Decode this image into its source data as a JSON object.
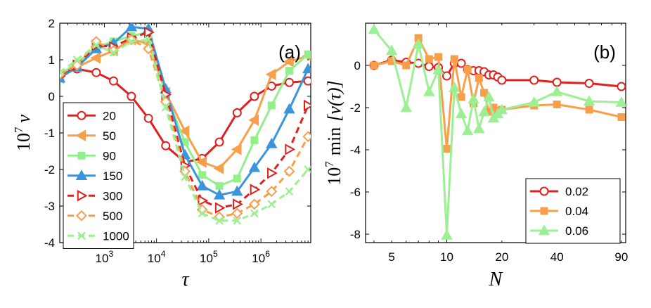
{
  "chart_data": [
    {
      "id": "a",
      "type": "line",
      "panel_label": "(a)",
      "x_scale": "log",
      "xlim": [
        140,
        9000000
      ],
      "ylim": [
        -4,
        2
      ],
      "xlabel": "τ",
      "ylabel_base": "10",
      "ylabel_exp": "7",
      "ylabel_var": "v",
      "xticks": [
        {
          "value": 1000,
          "base": "10",
          "exp": "3"
        },
        {
          "value": 10000,
          "base": "10",
          "exp": "4"
        },
        {
          "value": 100000,
          "base": "10",
          "exp": "5"
        },
        {
          "value": 1000000,
          "base": "10",
          "exp": "6"
        }
      ],
      "yticks": [
        -4,
        -3,
        -2,
        -1,
        0,
        1,
        2
      ],
      "legend_position": "bottom-left",
      "series": [
        {
          "name": "20",
          "color": "#e01f1f",
          "marker": "circle",
          "dash": "solid",
          "x": [
            140,
            300,
            700,
            1500,
            3300,
            7000,
            15000,
            35000,
            75000,
            160000,
            350000,
            750000,
            1600000,
            3500000,
            8000000
          ],
          "y": [
            0.6,
            0.75,
            0.65,
            0.42,
            0.0,
            -0.6,
            -1.35,
            -1.8,
            -1.7,
            -1.25,
            -0.45,
            0.0,
            0.28,
            0.38,
            0.42
          ]
        },
        {
          "name": "50",
          "color": "#f99e4b",
          "marker": "triangle-left",
          "dash": "solid",
          "x": [
            140,
            300,
            700,
            1500,
            3300,
            7000,
            15000,
            35000,
            75000,
            160000,
            350000,
            750000,
            1600000,
            3500000,
            8000000
          ],
          "y": [
            0.5,
            0.8,
            1.05,
            1.25,
            1.55,
            1.45,
            0.1,
            -0.95,
            -1.8,
            -1.97,
            -1.45,
            -0.65,
            0.6,
            0.95,
            1.1
          ]
        },
        {
          "name": "90",
          "color": "#92f08a",
          "marker": "square",
          "dash": "solid",
          "x": [
            140,
            300,
            700,
            1500,
            3300,
            7000,
            15000,
            35000,
            75000,
            160000,
            350000,
            750000,
            1600000,
            3500000,
            8000000
          ],
          "y": [
            0.6,
            0.9,
            1.35,
            1.5,
            1.65,
            1.75,
            0.05,
            -1.25,
            -2.15,
            -2.45,
            -2.25,
            -1.2,
            -0.25,
            0.7,
            1.15
          ]
        },
        {
          "name": "150",
          "color": "#3b95dd",
          "marker": "triangle-up",
          "dash": "solid",
          "x": [
            140,
            300,
            700,
            1500,
            3300,
            7000,
            15000,
            35000,
            75000,
            160000,
            350000,
            750000,
            1600000,
            3500000,
            8000000
          ],
          "y": [
            0.5,
            0.8,
            1.3,
            1.45,
            1.9,
            1.85,
            0.2,
            -1.6,
            -2.45,
            -2.7,
            -2.6,
            -1.95,
            -1.3,
            -0.35,
            0.75
          ]
        },
        {
          "name": "300",
          "color": "#e01f1f",
          "marker": "triangle-right",
          "dash": "dashed",
          "x": [
            140,
            300,
            700,
            1500,
            3300,
            7000,
            15000,
            35000,
            75000,
            160000,
            350000,
            750000,
            1600000,
            3500000,
            8000000
          ],
          "y": [
            0.55,
            0.85,
            1.4,
            1.35,
            1.6,
            1.75,
            0.05,
            -1.9,
            -2.85,
            -3.05,
            -2.95,
            -2.55,
            -2.1,
            -1.45,
            -0.25
          ]
        },
        {
          "name": "500",
          "color": "#f99e4b",
          "marker": "diamond",
          "dash": "dashed",
          "x": [
            140,
            300,
            700,
            1500,
            3300,
            7000,
            15000,
            35000,
            75000,
            160000,
            350000,
            750000,
            1600000,
            3500000,
            8000000
          ],
          "y": [
            0.6,
            0.85,
            1.5,
            1.25,
            1.55,
            1.3,
            -0.15,
            -2.05,
            -3.1,
            -3.3,
            -3.2,
            -2.95,
            -2.6,
            -2.05,
            -1.1
          ]
        },
        {
          "name": "1000",
          "color": "#9cf093",
          "marker": "x",
          "dash": "dashed",
          "x": [
            140,
            300,
            700,
            1500,
            3300,
            7000,
            15000,
            35000,
            75000,
            160000,
            350000,
            750000,
            1600000,
            3500000,
            8000000
          ],
          "y": [
            0.65,
            1.0,
            1.4,
            1.2,
            1.5,
            1.55,
            -0.3,
            -2.2,
            -3.2,
            -3.4,
            -3.4,
            -3.2,
            -2.95,
            -2.6,
            -2.0
          ]
        }
      ]
    },
    {
      "id": "b",
      "type": "line",
      "panel_label": "(b)",
      "x_scale": "log",
      "xlim": [
        3.6,
        95
      ],
      "ylim": [
        -8.4,
        2
      ],
      "xlabel": "N",
      "ylabel_base": "10",
      "ylabel_exp": "7",
      "ylabel_func": "min",
      "ylabel_arg": "[v(τ)]",
      "xticks": [
        5,
        10,
        20,
        40,
        90
      ],
      "yticks": [
        -8,
        -6,
        -4,
        -2,
        0
      ],
      "legend_position": "bottom-right",
      "series": [
        {
          "name": "0.02",
          "color": "#e01f1f",
          "marker": "circle",
          "x": [
            4,
            5,
            6,
            7,
            8,
            9,
            10,
            11,
            12,
            13,
            14,
            15,
            16,
            17,
            18,
            19,
            20,
            30,
            40,
            60,
            90
          ],
          "y": [
            0.0,
            0.25,
            0.15,
            0.1,
            -0.05,
            -0.1,
            -0.5,
            0.1,
            0.1,
            -0.2,
            -0.25,
            -0.25,
            -0.3,
            -0.45,
            -0.45,
            -0.55,
            -0.7,
            -0.7,
            -0.8,
            -0.85,
            -1.0
          ]
        },
        {
          "name": "0.04",
          "color": "#f99e4b",
          "marker": "square",
          "x": [
            4,
            5,
            6,
            7,
            8,
            9,
            10,
            11,
            12,
            13,
            14,
            15,
            16,
            17,
            18,
            19,
            20,
            30,
            40,
            60,
            90
          ],
          "y": [
            0.0,
            0.2,
            0.0,
            1.3,
            0.3,
            0.4,
            -3.95,
            0.3,
            -1.5,
            -0.2,
            -1.8,
            -0.6,
            -1.3,
            -2.2,
            -2.0,
            -2.15,
            -2.1,
            -1.9,
            -1.85,
            -2.1,
            -2.45
          ]
        },
        {
          "name": "0.06",
          "color": "#9cf093",
          "marker": "triangle-up",
          "x": [
            4,
            5,
            6,
            7,
            8,
            9,
            10,
            11,
            12,
            13,
            14,
            15,
            16,
            17,
            18,
            19,
            20,
            30,
            40,
            60,
            90
          ],
          "y": [
            1.7,
            0.7,
            -2.0,
            1.0,
            -1.25,
            -0.2,
            -8.05,
            -1.05,
            -2.3,
            -3.1,
            -1.6,
            -3.0,
            -2.2,
            -1.5,
            -2.5,
            -2.3,
            -2.1,
            -1.75,
            -1.25,
            -1.7,
            -1.75
          ]
        }
      ]
    }
  ]
}
